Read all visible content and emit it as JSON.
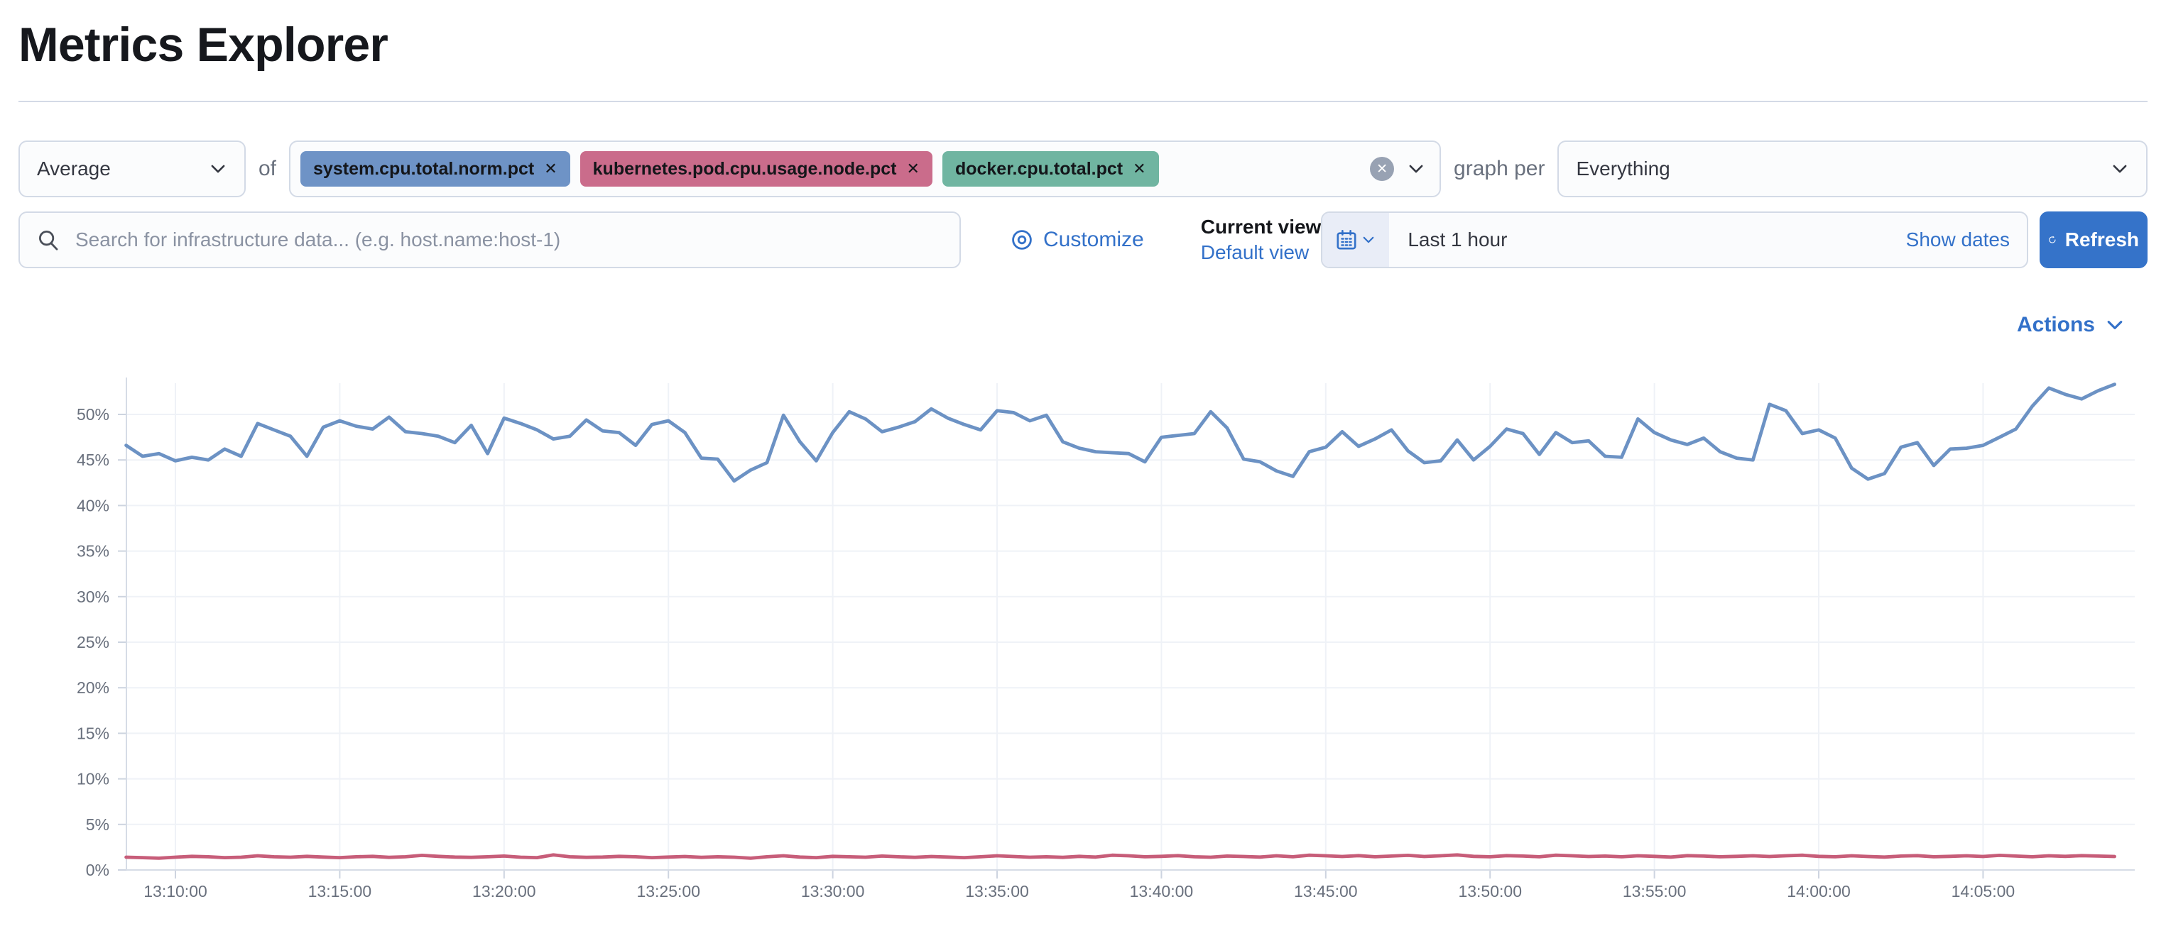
{
  "page": {
    "title": "Metrics Explorer"
  },
  "toolbar": {
    "aggregation_value": "Average",
    "of_label": "of",
    "metrics": [
      {
        "label": "system.cpu.total.norm.pct",
        "color": "#6e93c6"
      },
      {
        "label": "kubernetes.pod.cpu.usage.node.pct",
        "color": "#ca6c8b"
      },
      {
        "label": "docker.cpu.total.pct",
        "color": "#70b5a1"
      }
    ],
    "remove_icon": "✕",
    "clear_icon": "✕",
    "graph_per_label": "graph per",
    "graph_per_value": "Everything"
  },
  "searchbar": {
    "placeholder": "Search for infrastructure data... (e.g. host.name:host-1)"
  },
  "view_controls": {
    "customize_label": "Customize",
    "current_view_label": "Current view",
    "default_view_label": "Default view"
  },
  "time_picker": {
    "value": "Last 1 hour",
    "show_dates_label": "Show dates",
    "refresh_label": "Refresh"
  },
  "chart_header": {
    "actions_label": "Actions"
  },
  "chart_data": {
    "type": "line",
    "unit": "%",
    "legend": "none",
    "grid": true,
    "ylim": [
      0,
      55
    ],
    "y_ticks": [
      "0%",
      "5%",
      "10%",
      "15%",
      "20%",
      "25%",
      "30%",
      "35%",
      "40%",
      "45%",
      "50%"
    ],
    "x_ticks": [
      "13:10:00",
      "13:15:00",
      "13:20:00",
      "13:25:00",
      "13:30:00",
      "13:35:00",
      "13:40:00",
      "13:45:00",
      "13:50:00",
      "13:55:00",
      "14:00:00",
      "14:05:00"
    ],
    "start_time": "13:08:30",
    "interval_seconds": 30,
    "series": [
      {
        "name": "system.cpu.total.norm.pct",
        "color": "#6c92c4",
        "values": [
          46.6,
          45.4,
          45.7,
          44.9,
          45.3,
          45.0,
          46.2,
          45.4,
          49.0,
          48.3,
          47.6,
          45.4,
          48.6,
          49.3,
          48.7,
          48.4,
          49.7,
          48.1,
          47.9,
          47.6,
          46.9,
          48.8,
          45.7,
          49.6,
          49.0,
          48.3,
          47.3,
          47.6,
          49.4,
          48.2,
          48.0,
          46.6,
          48.9,
          49.3,
          48.0,
          45.2,
          45.1,
          42.7,
          43.9,
          44.7,
          49.9,
          47.0,
          44.9,
          48.0,
          50.3,
          49.5,
          48.1,
          48.6,
          49.2,
          50.6,
          49.6,
          48.9,
          48.3,
          50.4,
          50.2,
          49.3,
          49.9,
          47.0,
          46.3,
          45.9,
          45.8,
          45.7,
          44.8,
          47.5,
          47.7,
          47.9,
          50.3,
          48.5,
          45.1,
          44.8,
          43.8,
          43.2,
          45.9,
          46.4,
          48.1,
          46.5,
          47.3,
          48.3,
          46.0,
          44.7,
          44.9,
          47.2,
          45.0,
          46.5,
          48.4,
          47.9,
          45.6,
          48.0,
          46.9,
          47.1,
          45.4,
          45.3,
          49.5,
          48.0,
          47.2,
          46.7,
          47.4,
          45.9,
          45.2,
          45.0,
          51.1,
          50.4,
          47.9,
          48.3,
          47.4,
          44.1,
          42.9,
          43.5,
          46.4,
          46.9,
          44.4,
          46.2,
          46.3,
          46.6,
          47.5,
          48.4,
          50.9,
          52.9,
          52.2,
          51.7,
          52.6,
          53.3
        ]
      },
      {
        "name": "kubernetes.pod.cpu.usage.node.pct",
        "color": "#c75d79",
        "values": [
          1.4,
          1.35,
          1.3,
          1.4,
          1.5,
          1.45,
          1.35,
          1.4,
          1.55,
          1.45,
          1.4,
          1.5,
          1.42,
          1.35,
          1.45,
          1.5,
          1.38,
          1.45,
          1.6,
          1.5,
          1.42,
          1.38,
          1.45,
          1.52,
          1.4,
          1.35,
          1.65,
          1.45,
          1.38,
          1.42,
          1.5,
          1.45,
          1.35,
          1.42,
          1.48,
          1.38,
          1.45,
          1.4,
          1.3,
          1.45,
          1.55,
          1.42,
          1.35,
          1.5,
          1.45,
          1.4,
          1.52,
          1.45,
          1.38,
          1.48,
          1.42,
          1.35,
          1.45,
          1.55,
          1.48,
          1.4,
          1.45,
          1.38,
          1.5,
          1.42,
          1.62,
          1.55,
          1.45,
          1.5,
          1.58,
          1.45,
          1.4,
          1.52,
          1.48,
          1.42,
          1.55,
          1.45,
          1.62,
          1.55,
          1.48,
          1.58,
          1.45,
          1.52,
          1.6,
          1.48,
          1.55,
          1.65,
          1.5,
          1.45,
          1.58,
          1.52,
          1.45,
          1.62,
          1.55,
          1.48,
          1.52,
          1.45,
          1.55,
          1.5,
          1.42,
          1.58,
          1.52,
          1.45,
          1.5,
          1.55,
          1.48,
          1.55,
          1.62,
          1.5,
          1.45,
          1.55,
          1.48,
          1.42,
          1.52,
          1.58,
          1.45,
          1.5,
          1.55,
          1.48,
          1.6,
          1.52,
          1.45,
          1.55,
          1.5,
          1.58,
          1.52,
          1.48
        ]
      }
    ]
  }
}
